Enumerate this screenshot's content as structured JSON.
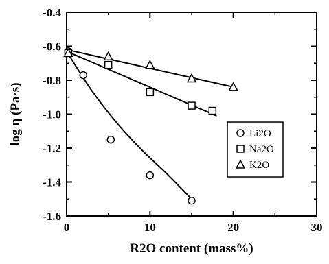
{
  "chart_data": {
    "type": "scatter",
    "title": "",
    "xlabel": "R2O content (mass%)",
    "ylabel": "log η (Pa·s)",
    "xlim": [
      0,
      30
    ],
    "ylim": [
      -1.6,
      -0.4
    ],
    "x_ticks": [
      0,
      10,
      20,
      30
    ],
    "y_ticks": [
      -0.4,
      -0.6,
      -0.8,
      -1.0,
      -1.2,
      -1.4,
      -1.6
    ],
    "x_tick_labels": [
      "0",
      "10",
      "20",
      "30"
    ],
    "y_tick_labels": [
      "-0.4",
      "-0.6",
      "-0.8",
      "-1.0",
      "-1.2",
      "-1.4",
      "-1.6"
    ],
    "grid": false,
    "legend_position": "right",
    "series": [
      {
        "name": "Li2O",
        "marker": "circle",
        "points": [
          [
            0.2,
            -0.63
          ],
          [
            2,
            -0.77
          ],
          [
            5.3,
            -1.15
          ],
          [
            10,
            -1.36
          ],
          [
            15,
            -1.51
          ]
        ],
        "fit": {
          "kind": "curve",
          "points": [
            [
              0,
              -0.63
            ],
            [
              3,
              -0.86
            ],
            [
              6,
              -1.05
            ],
            [
              9,
              -1.21
            ],
            [
              12,
              -1.35
            ],
            [
              15,
              -1.5
            ]
          ]
        }
      },
      {
        "name": "Na2O",
        "marker": "square",
        "points": [
          [
            0.2,
            -0.64
          ],
          [
            5,
            -0.71
          ],
          [
            10,
            -0.87
          ],
          [
            15,
            -0.95
          ],
          [
            17.5,
            -0.98
          ]
        ],
        "fit": {
          "kind": "line",
          "points": [
            [
              0,
              -0.63
            ],
            [
              18,
              -1.01
            ]
          ]
        }
      },
      {
        "name": "K2O",
        "marker": "triangle",
        "points": [
          [
            0.2,
            -0.64
          ],
          [
            5,
            -0.66
          ],
          [
            10,
            -0.71
          ],
          [
            15,
            -0.79
          ],
          [
            20,
            -0.84
          ]
        ],
        "fit": {
          "kind": "line",
          "points": [
            [
              0,
              -0.62
            ],
            [
              20,
              -0.84
            ]
          ]
        }
      }
    ]
  }
}
